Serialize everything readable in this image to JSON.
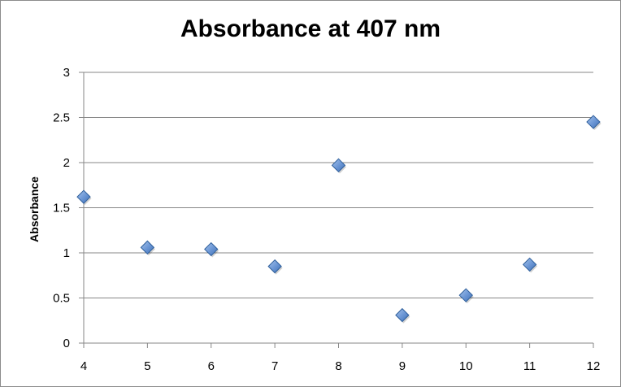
{
  "chart_data": {
    "type": "scatter",
    "title": "Absorbance at 407 nm",
    "xlabel": "",
    "ylabel": "Absorbance",
    "x": [
      4,
      5,
      6,
      7,
      8,
      9,
      10,
      11,
      12
    ],
    "y": [
      1.62,
      1.06,
      1.04,
      0.85,
      1.97,
      0.31,
      0.53,
      0.87,
      2.45
    ],
    "xlim": [
      4,
      12
    ],
    "ylim": [
      0,
      3
    ],
    "xticks": [
      4,
      5,
      6,
      7,
      8,
      9,
      10,
      11,
      12
    ],
    "yticks": [
      0,
      0.5,
      1,
      1.5,
      2,
      2.5,
      3
    ],
    "grid": "horizontal",
    "legend": "none",
    "marker": "diamond",
    "marker_color": "#4f81bd",
    "marker_edge_color": "#2c5d9a"
  }
}
